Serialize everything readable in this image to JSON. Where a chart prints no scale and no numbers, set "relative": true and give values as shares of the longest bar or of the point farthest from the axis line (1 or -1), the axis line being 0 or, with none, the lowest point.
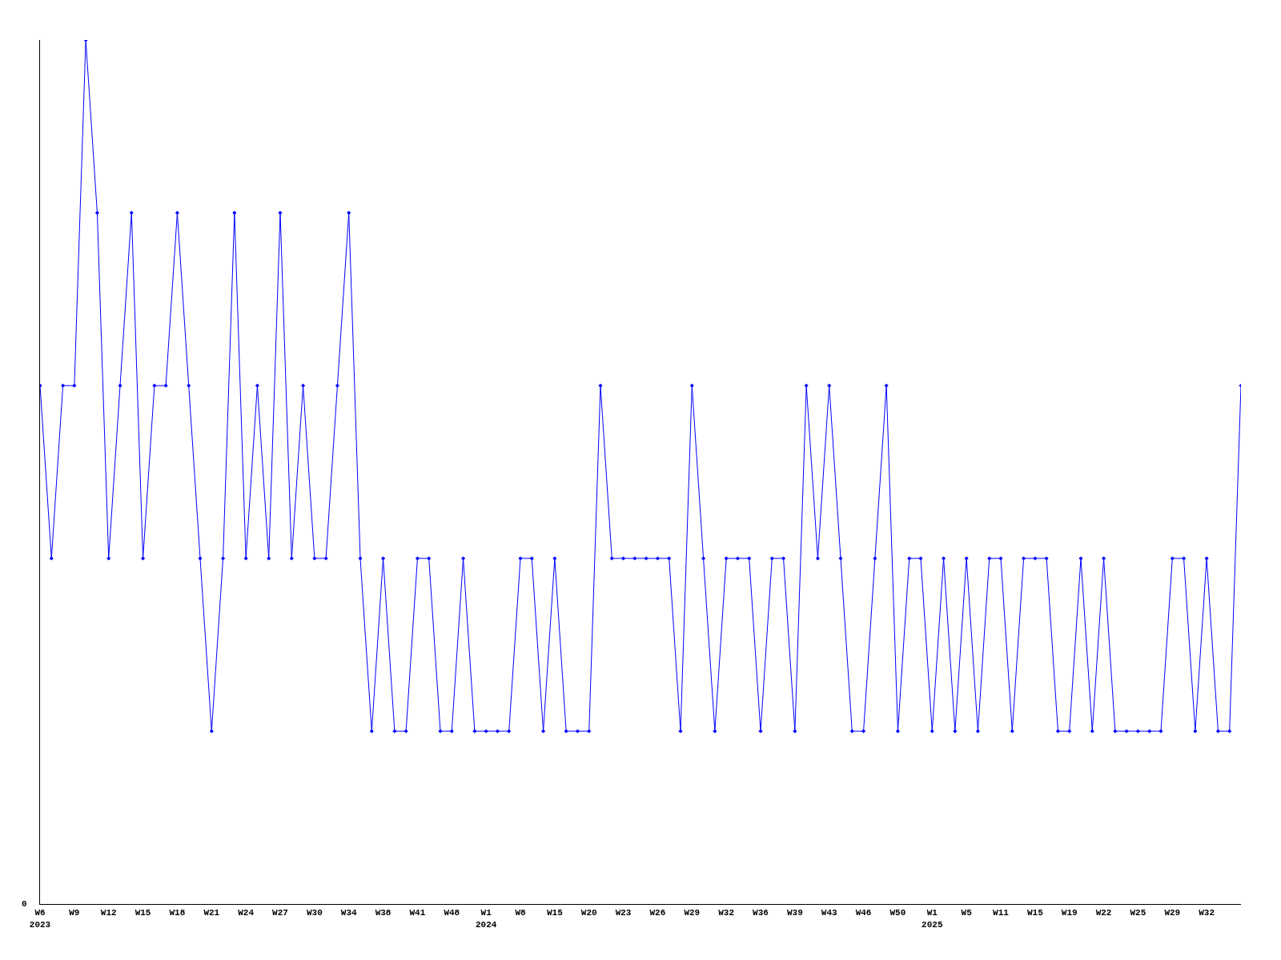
{
  "chart_data": {
    "type": "line",
    "relative": true,
    "marker": "diamond",
    "line_style": "solid",
    "grid": false,
    "annotations": [
      "0"
    ],
    "categories": [
      "W6\n2023",
      null,
      null,
      "W9",
      null,
      null,
      "W12",
      null,
      null,
      "W15",
      null,
      null,
      "W18",
      null,
      null,
      "W21",
      null,
      null,
      "W24",
      null,
      null,
      "W27",
      null,
      null,
      "W30",
      null,
      null,
      "W34",
      null,
      null,
      "W38",
      null,
      null,
      "W41",
      null,
      null,
      "W48",
      null,
      null,
      "W1\n2024",
      null,
      null,
      "W8",
      null,
      null,
      "W15",
      null,
      null,
      "W20",
      null,
      null,
      "W23",
      null,
      null,
      "W26",
      null,
      null,
      "W29",
      null,
      null,
      "W32",
      null,
      null,
      "W36",
      null,
      null,
      "W39",
      null,
      null,
      "W43",
      null,
      null,
      "W46",
      null,
      null,
      "W50",
      null,
      null,
      "W1\n2025",
      null,
      null,
      "W5",
      null,
      null,
      "W11",
      null,
      null,
      "W15",
      null,
      null,
      "W19",
      null,
      null,
      "W22",
      null,
      null,
      "W25",
      null,
      null,
      "W29",
      null,
      null,
      "W32",
      null,
      null,
      null
    ],
    "series": [
      {
        "color": "#0000ff",
        "values": [
          0.6,
          0.4,
          0.6,
          0.6,
          1,
          0.8,
          0.4,
          0.6,
          0.8,
          0.4,
          0.6,
          0.6,
          0.8,
          0.6,
          0.4,
          0.2,
          0.4,
          0.8,
          0.4,
          0.6,
          0.4,
          0.8,
          0.4,
          0.6,
          0.4,
          0.4,
          0.6,
          0.8,
          0.4,
          0.2,
          0.4,
          0.2,
          0.2,
          0.4,
          0.4,
          0.2,
          0.2,
          0.4,
          0.2,
          0.2,
          0.2,
          0.2,
          0.4,
          0.4,
          0.2,
          0.4,
          0.2,
          0.2,
          0.2,
          0.6,
          0.4,
          0.4,
          0.4,
          0.4,
          0.4,
          0.4,
          0.2,
          0.6,
          0.4,
          0.2,
          0.4,
          0.4,
          0.4,
          0.2,
          0.4,
          0.4,
          0.2,
          0.6,
          0.4,
          0.6,
          0.4,
          0.2,
          0.2,
          0.4,
          0.6,
          0.2,
          0.4,
          0.4,
          0.2,
          0.4,
          0.2,
          0.4,
          0.2,
          0.4,
          0.4,
          0.2,
          0.4,
          0.4,
          0.4,
          0.2,
          0.2,
          0.4,
          0.2,
          0.4,
          0.2,
          0.2,
          0.2,
          0.2,
          0.2,
          0.4,
          0.4,
          0.2,
          0.4,
          0.2,
          0.2,
          0.6
        ]
      }
    ]
  }
}
